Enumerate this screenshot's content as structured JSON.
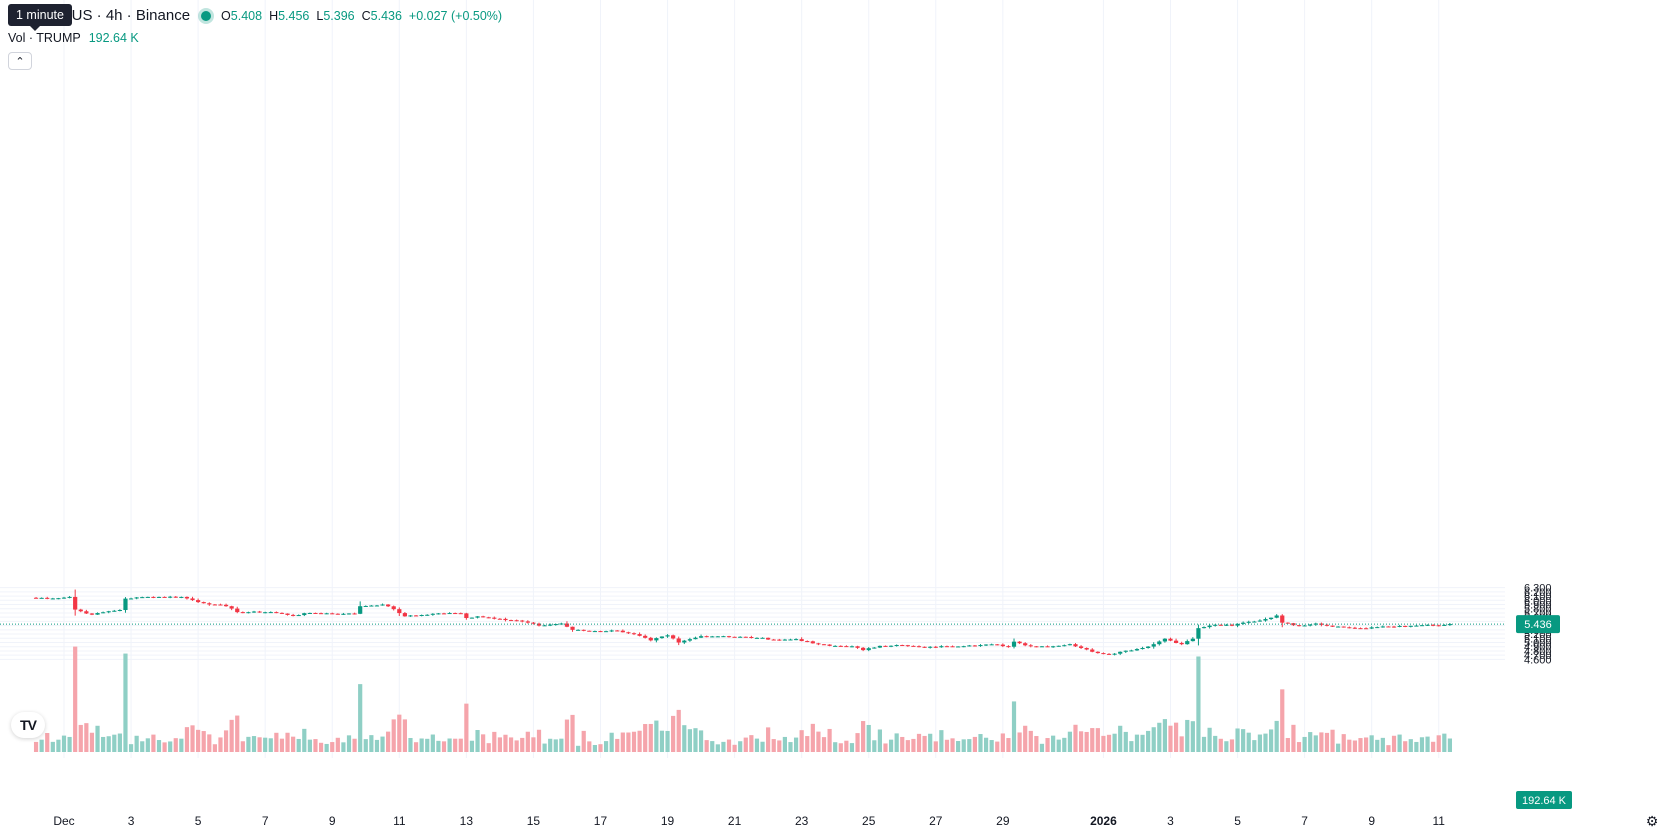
{
  "tooltip": {
    "text": "1 minute"
  },
  "legend": {
    "symbol": "P / TetherUS · 4h · Binance",
    "open_key": "O",
    "open": "5.408",
    "high_key": "H",
    "high": "5.456",
    "low_key": "L",
    "low": "5.396",
    "close_key": "C",
    "close": "5.436",
    "change": "+0.027 (+0.50%)"
  },
  "volume_legend": {
    "label": "Vol · TRUMP",
    "value": "192.64 K"
  },
  "logo": {
    "text": "TV"
  },
  "colors": {
    "up": "#089981",
    "down": "#f23645",
    "up_volume": "#8fcfc5",
    "down_volume": "#f5a4ab",
    "grid": "#f0f3fa",
    "text": "#131722"
  },
  "chart_data": {
    "type": "candlestick",
    "interval": "4h",
    "y_axis_ticks": [
      "6.300",
      "6.200",
      "6.100",
      "6.000",
      "5.900",
      "5.800",
      "5.700",
      "5.600",
      "5.500",
      "5.400",
      "5.300",
      "5.200",
      "5.100",
      "5.000",
      "4.900",
      "4.800",
      "4.700",
      "4.600"
    ],
    "ylim": [
      4.56,
      6.31
    ],
    "x_axis_ticks": [
      "Dec",
      "3",
      "5",
      "7",
      "9",
      "11",
      "13",
      "15",
      "17",
      "19",
      "21",
      "23",
      "25",
      "27",
      "29",
      "2026",
      "3",
      "5",
      "7",
      "9",
      "11"
    ],
    "last_price_label": "5.436",
    "last_volume_label": "192.64 K",
    "grid": true,
    "anchors": [
      [
        "Nov 30 00:00",
        6.06
      ],
      [
        "Nov 30 20:00",
        6.05
      ],
      [
        "Dec 1 04:00",
        6.08
      ],
      [
        "Dec 1 08:00",
        5.78
      ],
      [
        "Dec 1 20:00",
        5.66
      ],
      [
        "Dec 2 08:00",
        5.74
      ],
      [
        "Dec 2 16:00",
        5.77
      ],
      [
        "Dec 2 20:00",
        6.04
      ],
      [
        "Dec 3 12:00",
        6.08
      ],
      [
        "Dec 4 12:00",
        6.08
      ],
      [
        "Dec 5 04:00",
        5.93
      ],
      [
        "Dec 5 12:00",
        5.9
      ],
      [
        "Dec 5 20:00",
        5.86
      ],
      [
        "Dec 6 04:00",
        5.72
      ],
      [
        "Dec 7 04:00",
        5.72
      ],
      [
        "Dec 7 20:00",
        5.64
      ],
      [
        "Dec 8 08:00",
        5.7
      ],
      [
        "Dec 9 08:00",
        5.68
      ],
      [
        "Dec 9 16:00",
        5.68
      ],
      [
        "Dec 9 20:00",
        5.86
      ],
      [
        "Dec 10 12:00",
        5.9
      ],
      [
        "Dec 10 20:00",
        5.79
      ],
      [
        "Dec 11 04:00",
        5.62
      ],
      [
        "Dec 11 12:00",
        5.64
      ],
      [
        "Dec 12 04:00",
        5.69
      ],
      [
        "Dec 12 20:00",
        5.69
      ],
      [
        "Dec 13 00:00",
        5.58
      ],
      [
        "Dec 13 08:00",
        5.62
      ],
      [
        "Dec 14 00:00",
        5.56
      ],
      [
        "Dec 14 16:00",
        5.5
      ],
      [
        "Dec 15 04:00",
        5.4
      ],
      [
        "Dec 15 20:00",
        5.45
      ],
      [
        "Dec 16 04:00",
        5.3
      ],
      [
        "Dec 16 16:00",
        5.27
      ],
      [
        "Dec 17 12:00",
        5.28
      ],
      [
        "Dec 18 00:00",
        5.2
      ],
      [
        "Dec 18 12:00",
        5.05
      ],
      [
        "Dec 19 00:00",
        5.17
      ],
      [
        "Dec 19 08:00",
        5.0
      ],
      [
        "Dec 20 00:00",
        5.15
      ],
      [
        "Dec 20 16:00",
        5.15
      ],
      [
        "Dec 21 16:00",
        5.11
      ],
      [
        "Dec 22 08:00",
        5.06
      ],
      [
        "Dec 22 20:00",
        5.08
      ],
      [
        "Dec 23 08:00",
        4.98
      ],
      [
        "Dec 23 20:00",
        4.92
      ],
      [
        "Dec 24 12:00",
        4.91
      ],
      [
        "Dec 24 20:00",
        4.82
      ],
      [
        "Dec 25 08:00",
        4.92
      ],
      [
        "Dec 25 20:00",
        4.94
      ],
      [
        "Dec 26 04:00",
        4.92
      ],
      [
        "Dec 26 16:00",
        4.88
      ],
      [
        "Dec 27 08:00",
        4.91
      ],
      [
        "Dec 28 00:00",
        4.93
      ],
      [
        "Dec 28 20:00",
        4.95
      ],
      [
        "Dec 29 04:00",
        4.9
      ],
      [
        "Dec 29 08:00",
        5.02
      ],
      [
        "Dec 29 20:00",
        4.91
      ],
      [
        "Dec 30 12:00",
        4.91
      ],
      [
        "Dec 31 00:00",
        4.96
      ],
      [
        "Dec 31 08:00",
        4.87
      ],
      [
        "Dec 31 16:00",
        4.78
      ],
      [
        "Jan 1 04:00",
        4.72
      ],
      [
        "Jan 1 12:00",
        4.78
      ],
      [
        "Jan 2 04:00",
        4.87
      ],
      [
        "Jan 2 12:00",
        4.96
      ],
      [
        "Jan 2 20:00",
        5.09
      ],
      [
        "Jan 3 08:00",
        4.96
      ],
      [
        "Jan 3 16:00",
        5.09
      ],
      [
        "Jan 3 20:00",
        5.34
      ],
      [
        "Jan 4 08:00",
        5.42
      ],
      [
        "Jan 4 20:00",
        5.4
      ],
      [
        "Jan 5 04:00",
        5.47
      ],
      [
        "Jan 5 16:00",
        5.52
      ],
      [
        "Jan 6 04:00",
        5.64
      ],
      [
        "Jan 6 08:00",
        5.47
      ],
      [
        "Jan 6 20:00",
        5.4
      ],
      [
        "Jan 7 08:00",
        5.45
      ],
      [
        "Jan 7 16:00",
        5.4
      ],
      [
        "Jan 8 08:00",
        5.35
      ],
      [
        "Jan 8 20:00",
        5.33
      ],
      [
        "Jan 9 08:00",
        5.38
      ],
      [
        "Jan 10 00:00",
        5.38
      ],
      [
        "Jan 10 12:00",
        5.41
      ],
      [
        "Jan 11 00:00",
        5.4
      ],
      [
        "Jan 11 08:00",
        5.436
      ]
    ]
  }
}
